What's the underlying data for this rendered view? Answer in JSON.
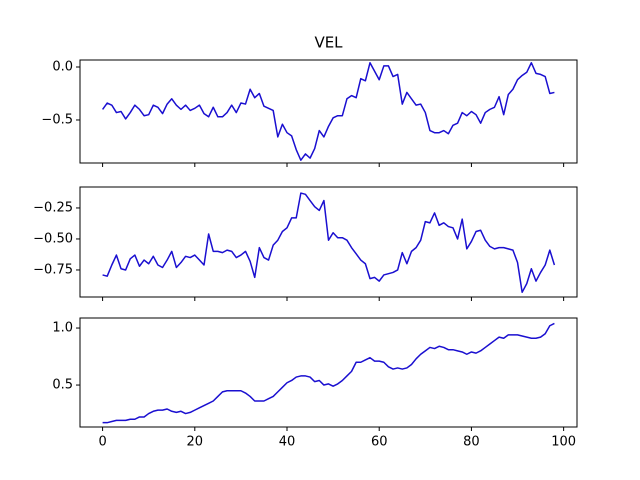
{
  "chart_data": [
    {
      "type": "line",
      "title": "VEL",
      "x": [
        0,
        1,
        2,
        3,
        4,
        5,
        6,
        7,
        8,
        9,
        10,
        11,
        12,
        13,
        14,
        15,
        16,
        17,
        18,
        19,
        20,
        21,
        22,
        23,
        24,
        25,
        26,
        27,
        28,
        29,
        30,
        31,
        32,
        33,
        34,
        35,
        36,
        37,
        38,
        39,
        40,
        41,
        42,
        43,
        44,
        45,
        46,
        47,
        48,
        49,
        50,
        51,
        52,
        53,
        54,
        55,
        56,
        57,
        58,
        59,
        60,
        61,
        62,
        63,
        64,
        65,
        66,
        67,
        68,
        69,
        70,
        71,
        72,
        73,
        74,
        75,
        76,
        77,
        78,
        79,
        80,
        81,
        82,
        83,
        84,
        85,
        86,
        87,
        88,
        89,
        90,
        91,
        92,
        93,
        94,
        95,
        96,
        97,
        98
      ],
      "values": [
        -0.4,
        -0.34,
        -0.36,
        -0.43,
        -0.42,
        -0.49,
        -0.43,
        -0.36,
        -0.4,
        -0.46,
        -0.45,
        -0.36,
        -0.38,
        -0.44,
        -0.35,
        -0.3,
        -0.36,
        -0.4,
        -0.36,
        -0.41,
        -0.39,
        -0.36,
        -0.44,
        -0.47,
        -0.38,
        -0.47,
        -0.47,
        -0.43,
        -0.36,
        -0.43,
        -0.34,
        -0.35,
        -0.21,
        -0.29,
        -0.25,
        -0.37,
        -0.39,
        -0.41,
        -0.66,
        -0.54,
        -0.62,
        -0.65,
        -0.78,
        -0.88,
        -0.82,
        -0.86,
        -0.77,
        -0.6,
        -0.66,
        -0.56,
        -0.48,
        -0.46,
        -0.46,
        -0.3,
        -0.27,
        -0.29,
        -0.11,
        -0.13,
        0.04,
        -0.04,
        -0.12,
        0.01,
        0.01,
        -0.09,
        -0.07,
        -0.35,
        -0.24,
        -0.3,
        -0.36,
        -0.35,
        -0.43,
        -0.6,
        -0.62,
        -0.62,
        -0.6,
        -0.63,
        -0.55,
        -0.53,
        -0.43,
        -0.46,
        -0.42,
        -0.45,
        -0.53,
        -0.43,
        -0.4,
        -0.38,
        -0.28,
        -0.45,
        -0.26,
        -0.21,
        -0.12,
        -0.08,
        -0.05,
        0.04,
        -0.06,
        -0.07,
        -0.09,
        -0.25,
        -0.24
      ],
      "color": "#1a0fd0",
      "xlim": [
        -4.9,
        102.9
      ],
      "ylim": [
        -0.906,
        0.066
      ],
      "yticks": [
        {
          "value": -0.5,
          "label": "−0.5"
        },
        {
          "value": 0,
          "label": "0.0"
        }
      ]
    },
    {
      "type": "line",
      "x": [
        0,
        1,
        2,
        3,
        4,
        5,
        6,
        7,
        8,
        9,
        10,
        11,
        12,
        13,
        14,
        15,
        16,
        17,
        18,
        19,
        20,
        21,
        22,
        23,
        24,
        25,
        26,
        27,
        28,
        29,
        30,
        31,
        32,
        33,
        34,
        35,
        36,
        37,
        38,
        39,
        40,
        41,
        42,
        43,
        44,
        45,
        46,
        47,
        48,
        49,
        50,
        51,
        52,
        53,
        54,
        55,
        56,
        57,
        58,
        59,
        60,
        61,
        62,
        63,
        64,
        65,
        66,
        67,
        68,
        69,
        70,
        71,
        72,
        73,
        74,
        75,
        76,
        77,
        78,
        79,
        80,
        81,
        82,
        83,
        84,
        85,
        86,
        87,
        88,
        89,
        90,
        91,
        92,
        93,
        94,
        95,
        96,
        97,
        98
      ],
      "values": [
        -0.79,
        -0.8,
        -0.71,
        -0.63,
        -0.74,
        -0.75,
        -0.66,
        -0.63,
        -0.72,
        -0.67,
        -0.7,
        -0.64,
        -0.71,
        -0.73,
        -0.67,
        -0.6,
        -0.73,
        -0.69,
        -0.64,
        -0.65,
        -0.63,
        -0.67,
        -0.71,
        -0.46,
        -0.6,
        -0.6,
        -0.61,
        -0.59,
        -0.6,
        -0.65,
        -0.63,
        -0.6,
        -0.68,
        -0.81,
        -0.57,
        -0.65,
        -0.67,
        -0.55,
        -0.51,
        -0.44,
        -0.41,
        -0.33,
        -0.33,
        -0.13,
        -0.14,
        -0.19,
        -0.24,
        -0.27,
        -0.19,
        -0.51,
        -0.45,
        -0.49,
        -0.49,
        -0.51,
        -0.57,
        -0.62,
        -0.67,
        -0.7,
        -0.82,
        -0.81,
        -0.84,
        -0.79,
        -0.78,
        -0.77,
        -0.75,
        -0.61,
        -0.7,
        -0.6,
        -0.57,
        -0.51,
        -0.36,
        -0.37,
        -0.29,
        -0.39,
        -0.37,
        -0.4,
        -0.41,
        -0.5,
        -0.34,
        -0.58,
        -0.52,
        -0.44,
        -0.43,
        -0.51,
        -0.56,
        -0.58,
        -0.57,
        -0.57,
        -0.58,
        -0.59,
        -0.69,
        -0.93,
        -0.86,
        -0.74,
        -0.84,
        -0.77,
        -0.71,
        -0.59,
        -0.71
      ],
      "color": "#1a0fd0",
      "xlim": [
        -4.9,
        102.9
      ],
      "ylim": [
        -0.968,
        -0.081
      ],
      "yticks": [
        {
          "value": -0.75,
          "label": "−0.75"
        },
        {
          "value": -0.5,
          "label": "−0.50"
        },
        {
          "value": -0.25,
          "label": "−0.25"
        }
      ]
    },
    {
      "type": "line",
      "x": [
        0,
        1,
        2,
        3,
        4,
        5,
        6,
        7,
        8,
        9,
        10,
        11,
        12,
        13,
        14,
        15,
        16,
        17,
        18,
        19,
        20,
        21,
        22,
        23,
        24,
        25,
        26,
        27,
        28,
        29,
        30,
        31,
        32,
        33,
        34,
        35,
        36,
        37,
        38,
        39,
        40,
        41,
        42,
        43,
        44,
        45,
        46,
        47,
        48,
        49,
        50,
        51,
        52,
        53,
        54,
        55,
        56,
        57,
        58,
        59,
        60,
        61,
        62,
        63,
        64,
        65,
        66,
        67,
        68,
        69,
        70,
        71,
        72,
        73,
        74,
        75,
        76,
        77,
        78,
        79,
        80,
        81,
        82,
        83,
        84,
        85,
        86,
        87,
        88,
        89,
        90,
        91,
        92,
        93,
        94,
        95,
        96,
        97,
        98
      ],
      "values": [
        0.17,
        0.17,
        0.18,
        0.19,
        0.19,
        0.19,
        0.2,
        0.2,
        0.22,
        0.22,
        0.25,
        0.27,
        0.28,
        0.28,
        0.29,
        0.27,
        0.26,
        0.27,
        0.25,
        0.26,
        0.28,
        0.3,
        0.32,
        0.34,
        0.36,
        0.4,
        0.44,
        0.45,
        0.45,
        0.45,
        0.45,
        0.43,
        0.4,
        0.36,
        0.36,
        0.36,
        0.38,
        0.4,
        0.44,
        0.48,
        0.52,
        0.54,
        0.57,
        0.58,
        0.58,
        0.57,
        0.53,
        0.54,
        0.5,
        0.51,
        0.49,
        0.51,
        0.54,
        0.58,
        0.62,
        0.7,
        0.7,
        0.72,
        0.74,
        0.71,
        0.71,
        0.7,
        0.66,
        0.64,
        0.65,
        0.64,
        0.65,
        0.68,
        0.73,
        0.77,
        0.8,
        0.83,
        0.82,
        0.84,
        0.83,
        0.81,
        0.81,
        0.8,
        0.79,
        0.77,
        0.79,
        0.78,
        0.8,
        0.83,
        0.86,
        0.89,
        0.92,
        0.91,
        0.94,
        0.94,
        0.94,
        0.93,
        0.92,
        0.91,
        0.91,
        0.92,
        0.95,
        1.02,
        1.04
      ],
      "color": "#1a0fd0",
      "xlim": [
        -4.9,
        102.9
      ],
      "ylim": [
        0.132,
        1.088
      ],
      "xticks": [
        0,
        20,
        40,
        60,
        80,
        100
      ],
      "yticks": [
        0.5,
        {
          "value": 1.0,
          "label": "1.0"
        }
      ]
    }
  ]
}
